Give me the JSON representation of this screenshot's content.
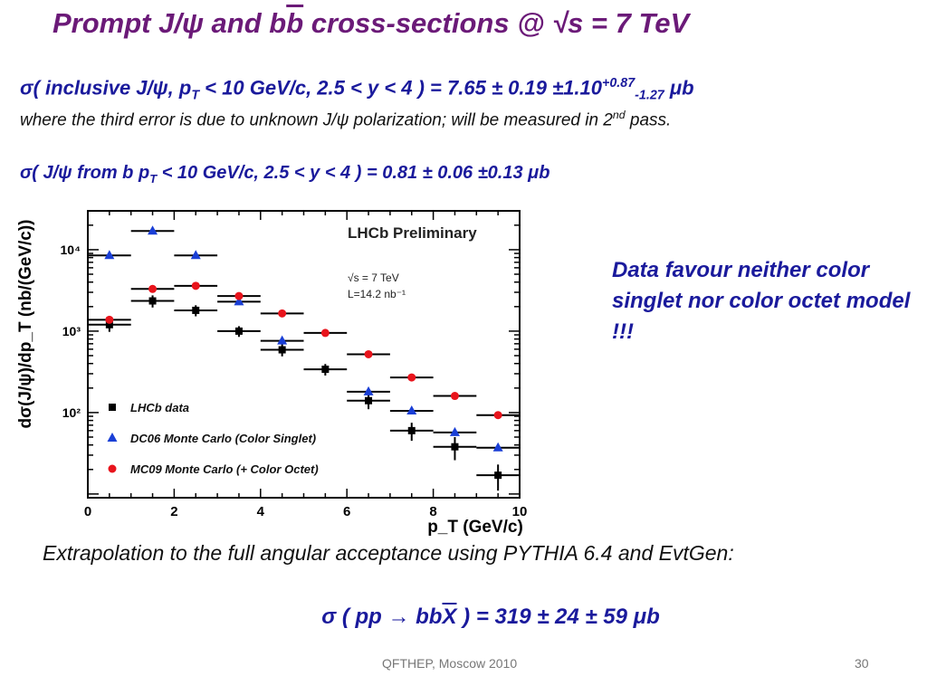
{
  "slide": {
    "title_prefix": "Prompt  J/",
    "title_psi": "ψ",
    "title_and": " and b",
    "title_bbar": "b",
    "title_rest": " cross-sections @ ",
    "title_sqrt": "√",
    "title_end": "s = 7 TeV",
    "line1_a": "σ( inclusive J/ψ, p",
    "line1_sub_t": "T",
    "line1_b": " < 10 GeV/c, 2.5 < y < 4 ) = 7.65 ± 0.19 ±1.10",
    "line1_sup": "+0.87",
    "line1_sub2": "-1.27",
    "line1_unit": " μb",
    "line2_a": "where the third error is due to unknown J/ψ polarization; will be measured in 2",
    "line2_sup": "nd",
    "line2_b": " pass.",
    "line3_a": "σ( J/ψ from b p",
    "line3_sub_t": "T",
    "line3_b": " < 10 GeV/c, 2.5 < y < 4 ) = 0.81 ± 0.06 ±0.13 μb",
    "note": "Data favour neither color singlet nor color octet model !!!",
    "extrap": "Extrapolation to the full angular acceptance using PYTHIA 6.4 and EvtGen:",
    "result_a": "σ ( pp → bb",
    "result_xbar": "X",
    "result_b": " ) = 319 ± 24 ± 59 μb",
    "footer": "QFTHEP, Moscow 2010",
    "page": "30"
  },
  "colors": {
    "title": "#6b1a78",
    "text_blue": "#1a1a9c",
    "data": "#000000",
    "singlet": "#1a3fd6",
    "octet": "#e8141c"
  },
  "chart_data": {
    "type": "scatter",
    "title": "LHCb Preliminary",
    "annotation_lines": [
      "√s = 7 TeV",
      "L=14.2 nb⁻¹"
    ],
    "xlabel": "p_T (GeV/c)",
    "ylabel": "dσ(J/ψ)/dp_T  (nb/(GeV/c))",
    "xlim": [
      0,
      10
    ],
    "ylim": [
      9,
      30000
    ],
    "yscale": "log",
    "xticks": [
      0,
      2,
      4,
      6,
      8,
      10
    ],
    "yticks": [
      {
        "value": 100,
        "label": "10²"
      },
      {
        "value": 1000,
        "label": "10³"
      },
      {
        "value": 10000,
        "label": "10⁴"
      }
    ],
    "legend_position": "bottom-left",
    "series": [
      {
        "name": "LHCb data",
        "marker": "square",
        "color": "#000000",
        "x": [
          0.5,
          1.5,
          2.5,
          3.5,
          4.5,
          5.5,
          6.5,
          7.5,
          8.5,
          9.5
        ],
        "y": [
          1200,
          2350,
          1800,
          1000,
          590,
          340,
          140,
          60,
          38,
          17
        ],
        "xerr": 0.5,
        "yerr": [
          220,
          400,
          280,
          150,
          100,
          55,
          30,
          15,
          12,
          6
        ]
      },
      {
        "name": "DC06 Monte Carlo (Color Singlet)",
        "marker": "triangle",
        "color": "#1a3fd6",
        "x": [
          0.5,
          1.5,
          2.5,
          3.5,
          4.5,
          6.5,
          7.5,
          8.5,
          9.5
        ],
        "y": [
          8500,
          17000,
          8500,
          2300,
          760,
          180,
          105,
          57,
          37
        ],
        "xerr": 0.5
      },
      {
        "name": "MC09 Monte Carlo (+ Color Octet)",
        "marker": "circle",
        "color": "#e8141c",
        "x": [
          0.5,
          1.5,
          2.5,
          3.5,
          4.5,
          5.5,
          6.5,
          7.5,
          8.5,
          9.5
        ],
        "y": [
          1380,
          3300,
          3600,
          2700,
          1650,
          950,
          520,
          270,
          160,
          93
        ],
        "xerr": 0.5
      }
    ]
  }
}
